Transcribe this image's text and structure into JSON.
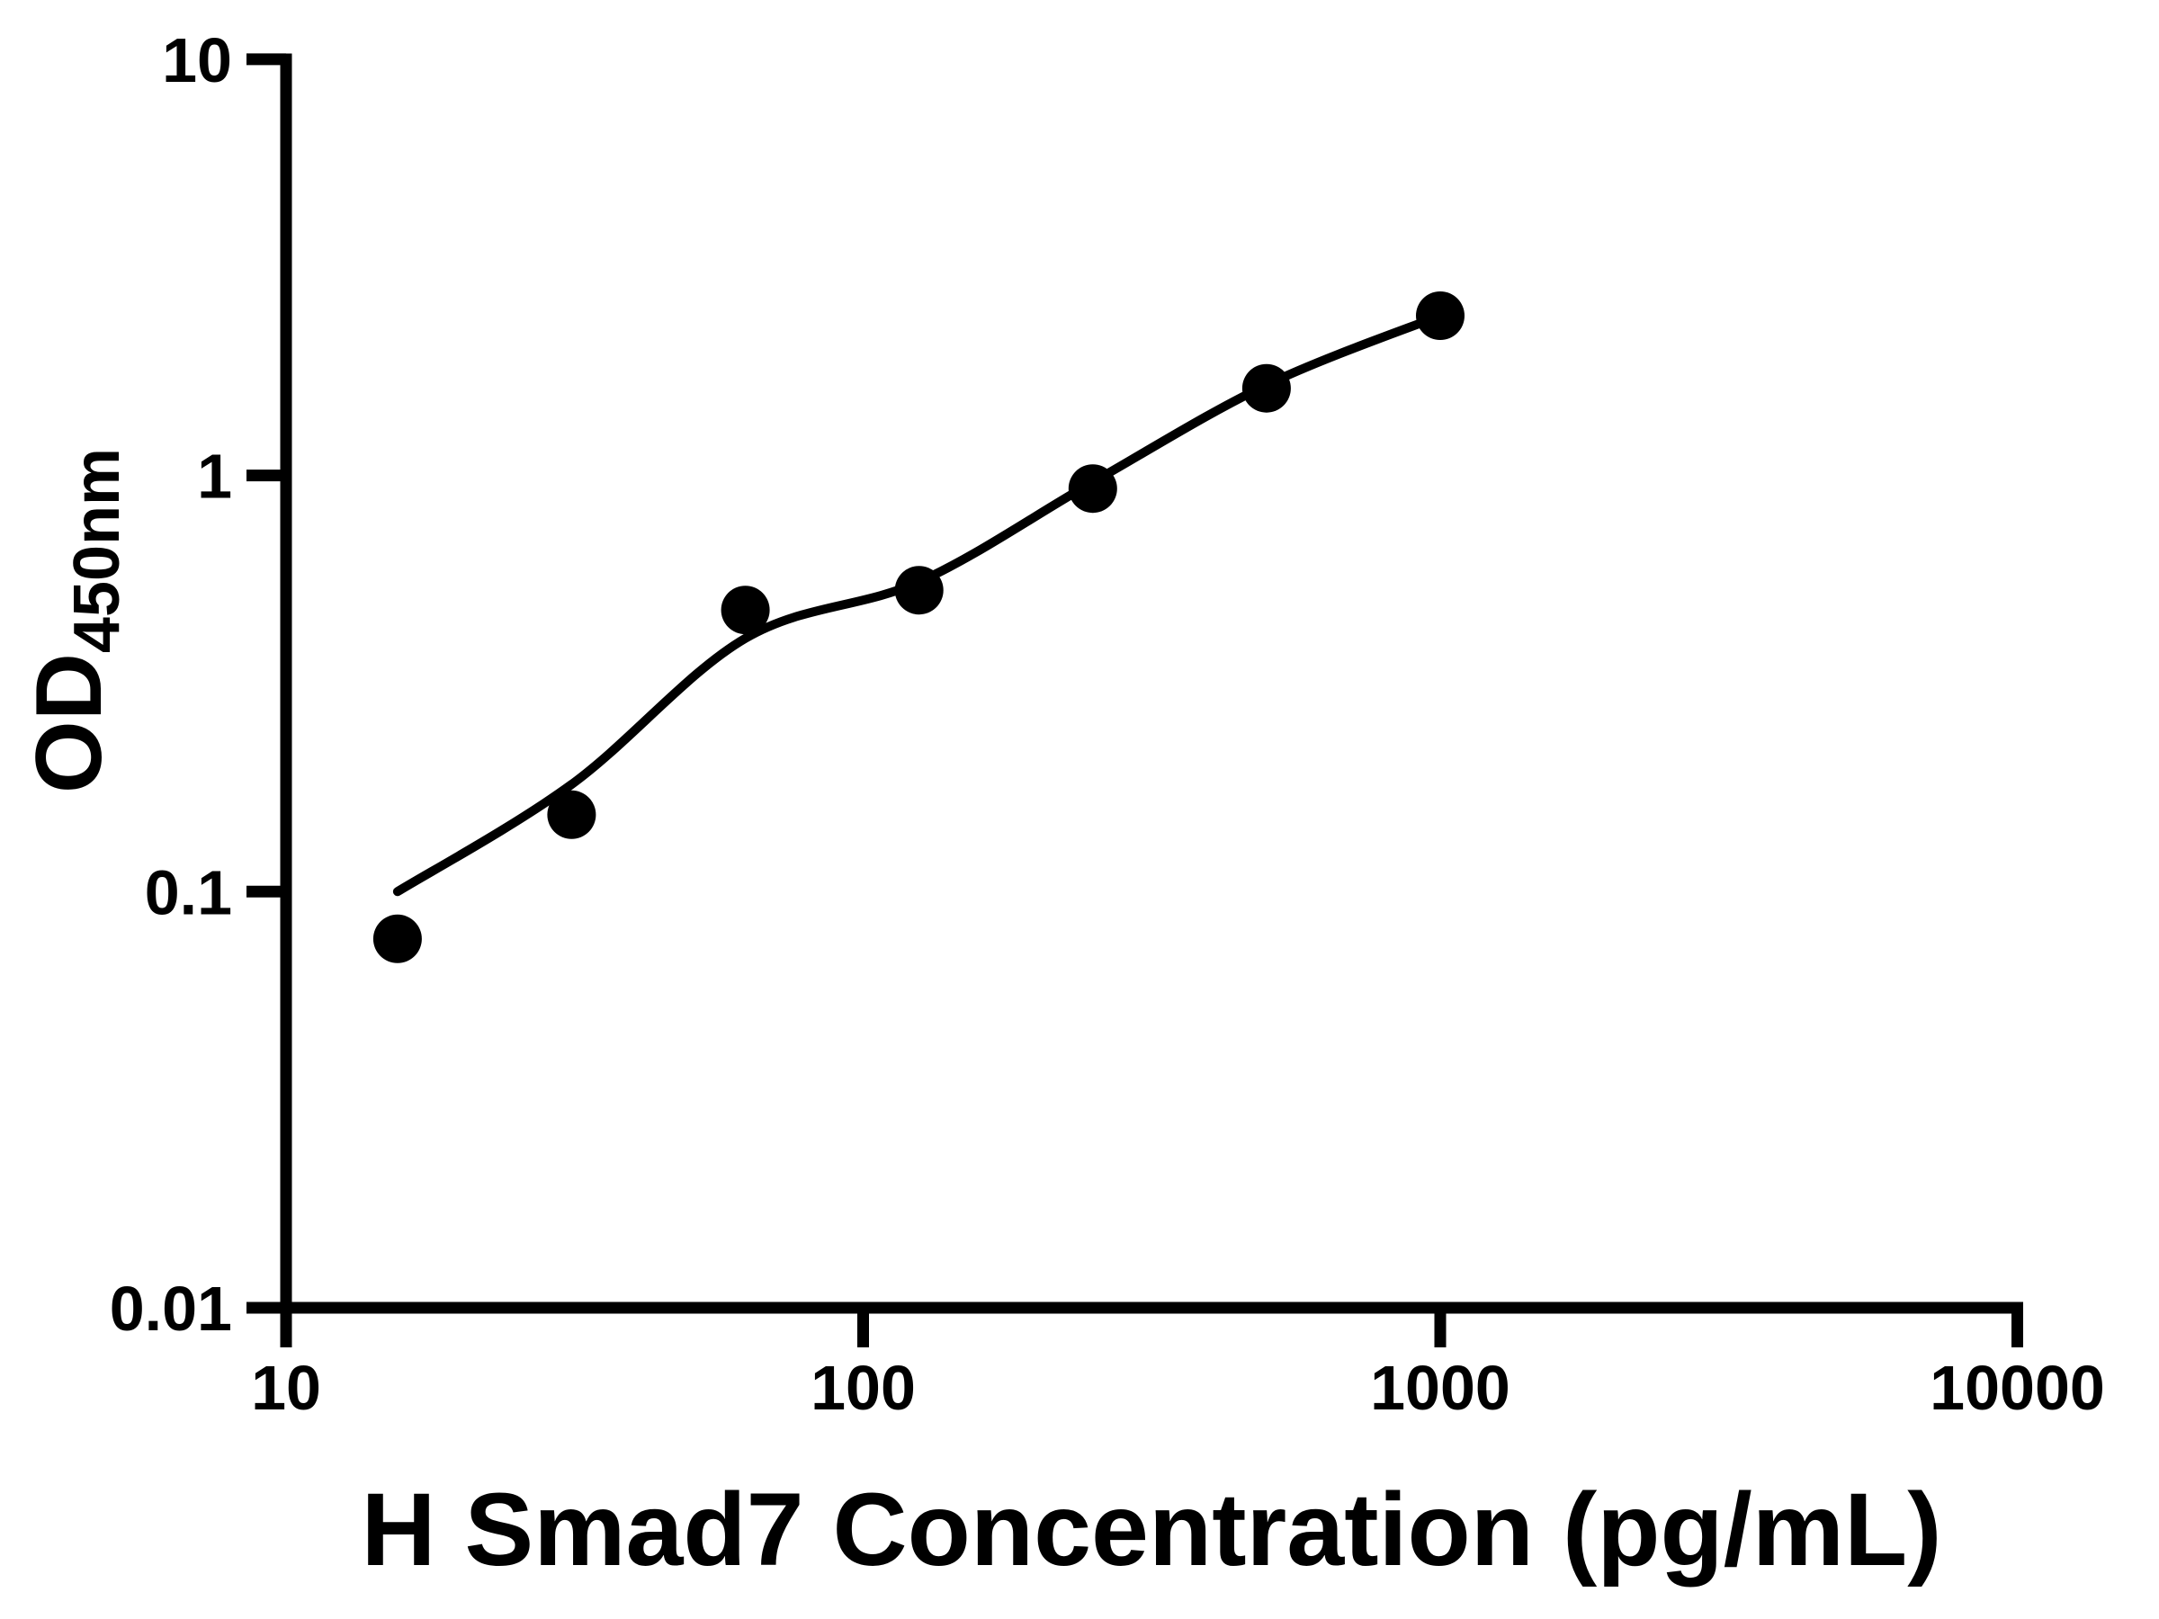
{
  "chart_data": {
    "type": "scatter",
    "title": "",
    "xlabel": "H Smad7 Concentration (pg/mL)",
    "ylabel_main": "OD",
    "ylabel_sub": "450nm",
    "x_scale": "log",
    "y_scale": "log",
    "xlim": [
      10,
      10000
    ],
    "ylim": [
      0.01,
      10
    ],
    "x_ticks": [
      "10",
      "100",
      "1000",
      "10000"
    ],
    "y_ticks": [
      "10",
      "1",
      "0.1",
      "0.01"
    ],
    "grid": false,
    "legend": null,
    "series": [
      {
        "name": "standard-points",
        "marker": "filled-circle",
        "x": [
          15.6,
          31.25,
          62.5,
          125,
          250,
          500,
          1000
        ],
        "y": [
          0.077,
          0.153,
          0.475,
          0.53,
          0.93,
          1.62,
          2.42
        ]
      }
    ],
    "fit_curve": {
      "name": "fitted-standard-curve",
      "x": [
        15.6,
        31.25,
        62.5,
        125,
        250,
        500,
        1000
      ],
      "y": [
        0.1,
        0.181,
        0.406,
        0.555,
        0.964,
        1.65,
        2.42
      ]
    },
    "colors": {
      "points": "#000000",
      "curve": "#000000",
      "axis": "#000000",
      "background": "#ffffff"
    }
  }
}
